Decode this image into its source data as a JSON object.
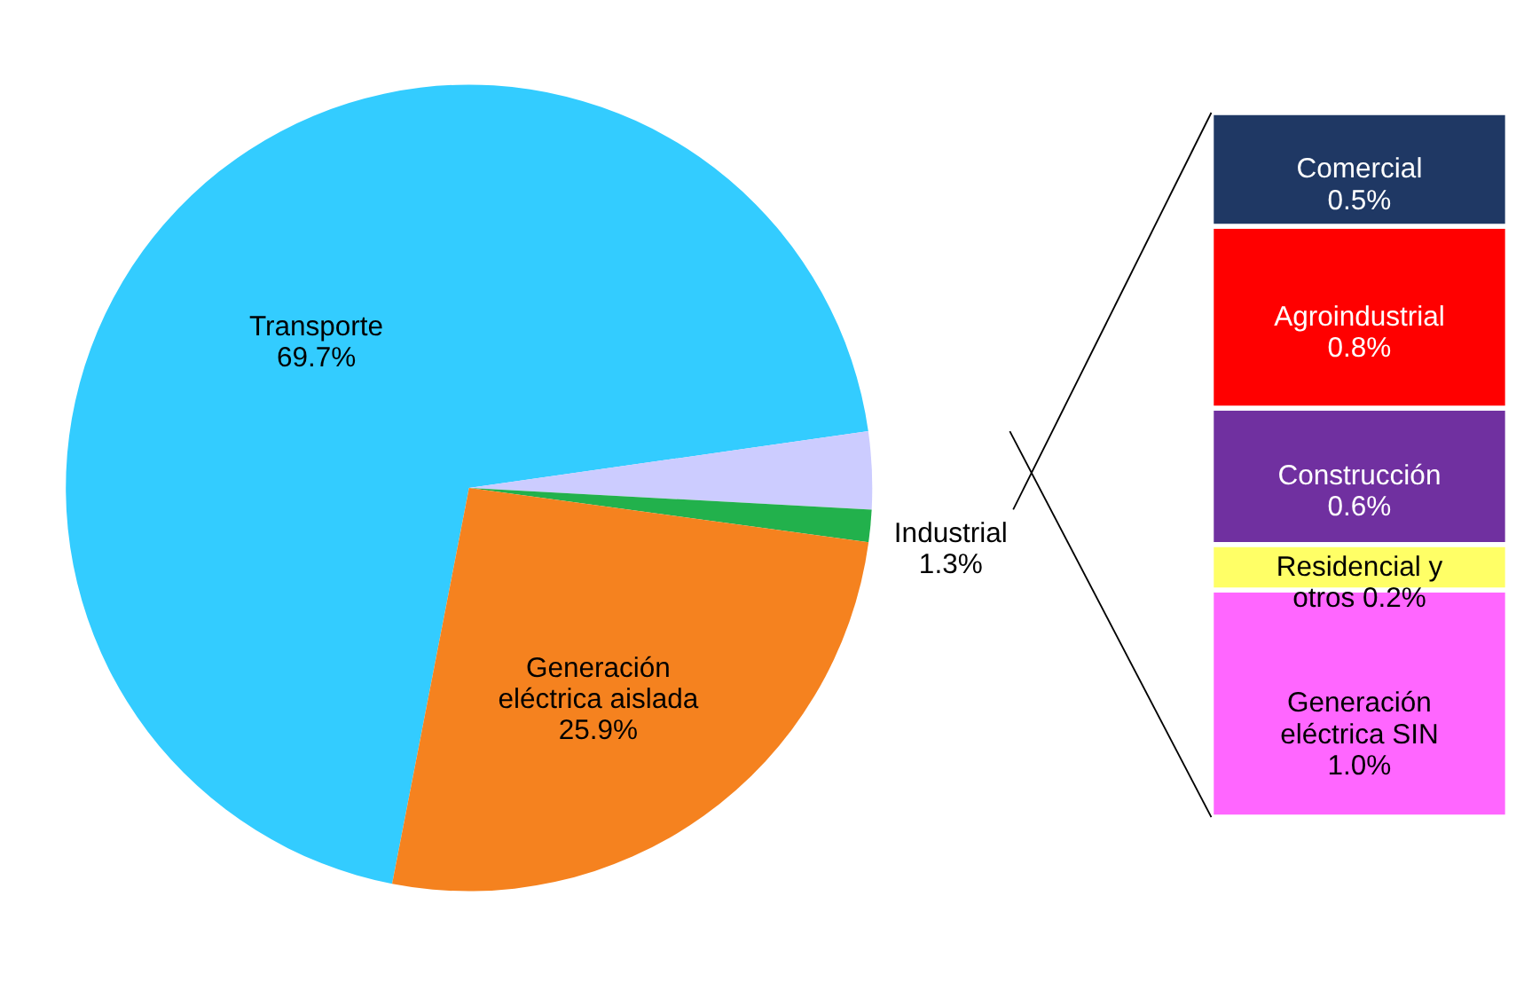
{
  "chart_data": [
    {
      "type": "pie",
      "categories": [
        "Transporte",
        null,
        "Industrial",
        "Generación eléctrica aislada"
      ],
      "values": [
        69.7,
        3.1,
        1.3,
        25.9
      ],
      "value_labels": [
        "69.7%",
        null,
        "1.3%",
        "25.9%"
      ],
      "colors": [
        "#33ccff",
        "#ccccff",
        "#22b14c",
        "#f5821f"
      ]
    },
    {
      "type": "bar",
      "stacked": true,
      "categories": [
        null
      ],
      "series": [
        {
          "name": "Generación eléctrica SIN",
          "color": "#ff66ff",
          "values": [
            1.0
          ],
          "value_labels": [
            "1.0%"
          ]
        },
        {
          "name": "Residencial y otros",
          "color": "#ffff66",
          "values": [
            0.2
          ],
          "value_labels": [
            "0.2%"
          ]
        },
        {
          "name": "Construcción",
          "color": "#7030a0",
          "values": [
            0.6
          ],
          "value_labels": [
            "0.6%"
          ]
        },
        {
          "name": "Agroindustrial",
          "color": "#ff0000",
          "values": [
            0.8
          ],
          "value_labels": [
            "0.8%"
          ]
        },
        {
          "name": "Comercial",
          "color": "#1f3864",
          "values": [
            0.5
          ],
          "value_labels": [
            "0.5%"
          ]
        }
      ]
    }
  ]
}
